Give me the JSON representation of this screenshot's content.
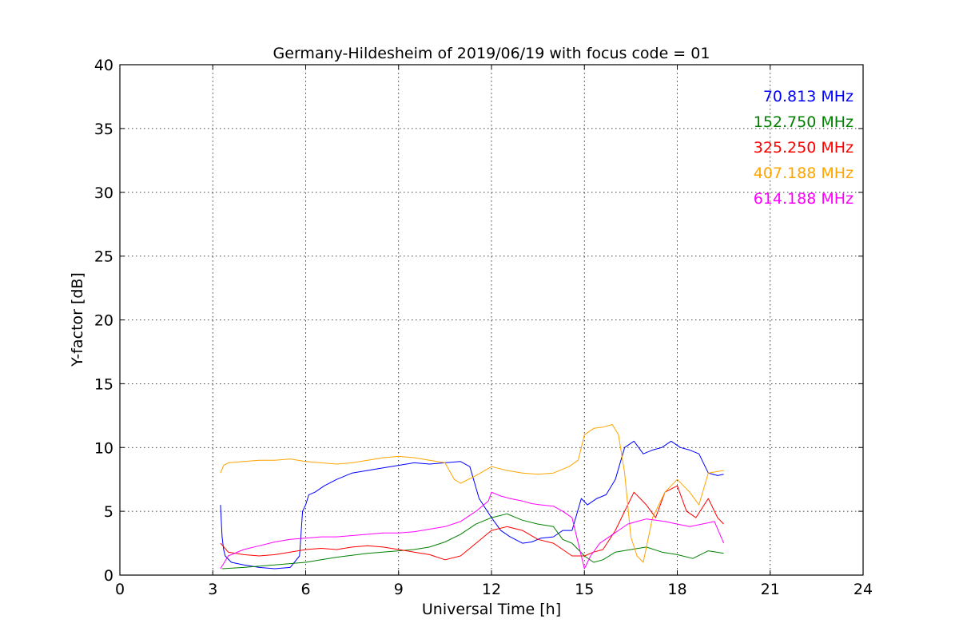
{
  "chart_data": {
    "type": "line",
    "title": "Germany-Hildesheim of 2019/06/19 with focus code = 01",
    "xlabel": "Universal Time [h]",
    "ylabel": "Y-factor [dB]",
    "xlim": [
      0,
      24
    ],
    "ylim": [
      0,
      40
    ],
    "xticks": [
      0,
      3,
      6,
      9,
      12,
      15,
      18,
      21,
      24
    ],
    "yticks": [
      0,
      5,
      10,
      15,
      20,
      25,
      30,
      35,
      40
    ],
    "xtick_labels": [
      "0",
      "3",
      "6",
      "9",
      "12",
      "15",
      "18",
      "21",
      "24"
    ],
    "ytick_labels": [
      "0",
      "5",
      "10",
      "15",
      "20",
      "25",
      "30",
      "35",
      "40"
    ],
    "grid": true,
    "legend_position": "top-right",
    "series": [
      {
        "name": "70.813 MHz",
        "color": "#0000ff",
        "x": [
          3.25,
          3.3,
          3.35,
          3.4,
          3.6,
          4.0,
          4.5,
          5.0,
          5.5,
          5.8,
          5.9,
          6.0,
          6.1,
          6.3,
          6.6,
          7.0,
          7.5,
          8.0,
          8.5,
          9.0,
          9.5,
          10.0,
          10.5,
          11.0,
          11.3,
          11.6,
          12.0,
          12.3,
          12.6,
          13.0,
          13.3,
          13.6,
          14.0,
          14.3,
          14.6,
          14.9,
          15.1,
          15.4,
          15.7,
          16.0,
          16.3,
          16.6,
          16.9,
          17.2,
          17.5,
          17.8,
          18.1,
          18.4,
          18.7,
          19.0,
          19.3,
          19.5
        ],
        "y": [
          5.5,
          3.0,
          2.0,
          1.5,
          1.0,
          0.8,
          0.6,
          0.5,
          0.6,
          1.5,
          5.0,
          5.5,
          6.3,
          6.5,
          7.0,
          7.5,
          8.0,
          8.2,
          8.4,
          8.6,
          8.8,
          8.7,
          8.8,
          8.9,
          8.5,
          6.0,
          4.5,
          3.5,
          3.0,
          2.5,
          2.6,
          2.9,
          3.0,
          3.5,
          3.5,
          6.0,
          5.5,
          6.0,
          6.3,
          7.5,
          10.0,
          10.5,
          9.5,
          9.8,
          10.0,
          10.5,
          10.0,
          9.8,
          9.5,
          8.0,
          7.8,
          7.9
        ]
      },
      {
        "name": "152.750 MHz",
        "color": "#008000",
        "x": [
          3.3,
          4.0,
          5.0,
          6.0,
          6.5,
          7.0,
          8.0,
          9.0,
          9.5,
          10.0,
          10.5,
          11.0,
          11.5,
          12.0,
          12.5,
          13.0,
          13.5,
          14.0,
          14.3,
          14.6,
          15.0,
          15.3,
          15.6,
          16.0,
          16.5,
          17.0,
          17.5,
          18.0,
          18.5,
          19.0,
          19.5
        ],
        "y": [
          0.5,
          0.6,
          0.8,
          1.0,
          1.2,
          1.4,
          1.7,
          1.9,
          2.0,
          2.2,
          2.6,
          3.2,
          4.0,
          4.5,
          4.8,
          4.3,
          4.0,
          3.8,
          2.8,
          2.5,
          1.5,
          1.0,
          1.2,
          1.8,
          2.0,
          2.2,
          1.8,
          1.6,
          1.3,
          1.9,
          1.7
        ]
      },
      {
        "name": "325.250 MHz",
        "color": "#ff0000",
        "x": [
          3.25,
          3.5,
          4.0,
          4.5,
          5.0,
          5.5,
          6.0,
          6.5,
          7.0,
          7.5,
          8.0,
          8.5,
          9.0,
          9.5,
          10.0,
          10.5,
          11.0,
          11.5,
          12.0,
          12.5,
          13.0,
          13.5,
          14.0,
          14.3,
          14.6,
          15.0,
          15.3,
          15.6,
          16.0,
          16.3,
          16.6,
          17.0,
          17.3,
          17.6,
          18.0,
          18.3,
          18.6,
          19.0,
          19.3,
          19.5
        ],
        "y": [
          2.5,
          1.8,
          1.6,
          1.5,
          1.6,
          1.8,
          2.0,
          2.1,
          2.0,
          2.2,
          2.3,
          2.2,
          2.0,
          1.8,
          1.6,
          1.2,
          1.5,
          2.5,
          3.5,
          3.8,
          3.5,
          2.8,
          2.5,
          2.0,
          1.5,
          1.5,
          1.8,
          2.0,
          3.5,
          5.0,
          6.5,
          5.5,
          4.5,
          6.5,
          7.0,
          5.0,
          4.5,
          6.0,
          4.5,
          4.0
        ]
      },
      {
        "name": "407.188 MHz",
        "color": "#ffa500",
        "x": [
          3.25,
          3.35,
          3.5,
          4.0,
          4.5,
          5.0,
          5.5,
          6.0,
          6.5,
          7.0,
          7.5,
          8.0,
          8.5,
          9.0,
          9.5,
          10.0,
          10.5,
          10.8,
          11.0,
          11.5,
          12.0,
          12.5,
          13.0,
          13.5,
          14.0,
          14.5,
          14.8,
          15.0,
          15.3,
          15.6,
          15.9,
          16.1,
          16.3,
          16.5,
          16.7,
          16.9,
          17.2,
          17.6,
          18.0,
          18.4,
          18.7,
          19.0,
          19.5
        ],
        "y": [
          8.0,
          8.6,
          8.8,
          8.9,
          9.0,
          9.0,
          9.1,
          8.9,
          8.8,
          8.7,
          8.8,
          9.0,
          9.2,
          9.3,
          9.2,
          9.0,
          8.8,
          7.5,
          7.2,
          7.8,
          8.5,
          8.2,
          8.0,
          7.9,
          8.0,
          8.5,
          9.0,
          11.0,
          11.5,
          11.6,
          11.8,
          11.0,
          8.0,
          3.0,
          1.5,
          1.0,
          4.5,
          6.5,
          7.5,
          6.5,
          5.5,
          8.0,
          8.2
        ]
      },
      {
        "name": "614.188 MHz",
        "color": "#ff00ff",
        "x": [
          3.25,
          3.5,
          4.0,
          4.5,
          5.0,
          5.5,
          6.0,
          6.5,
          7.0,
          7.5,
          8.0,
          8.5,
          9.0,
          9.5,
          10.0,
          10.5,
          11.0,
          11.5,
          11.9,
          12.0,
          12.3,
          12.6,
          13.0,
          13.3,
          13.6,
          14.0,
          14.3,
          14.6,
          15.0,
          15.2,
          15.5,
          15.8,
          16.1,
          16.4,
          16.7,
          17.0,
          17.3,
          17.6,
          18.0,
          18.4,
          18.8,
          19.2,
          19.5
        ],
        "y": [
          0.5,
          1.5,
          2.0,
          2.3,
          2.6,
          2.8,
          2.9,
          3.0,
          3.0,
          3.1,
          3.2,
          3.3,
          3.3,
          3.4,
          3.6,
          3.8,
          4.2,
          5.0,
          5.8,
          6.5,
          6.2,
          6.0,
          5.8,
          5.6,
          5.5,
          5.4,
          5.0,
          4.5,
          0.5,
          1.5,
          2.5,
          3.0,
          3.5,
          4.0,
          4.2,
          4.4,
          4.3,
          4.2,
          4.0,
          3.8,
          4.0,
          4.2,
          2.5
        ]
      }
    ]
  }
}
